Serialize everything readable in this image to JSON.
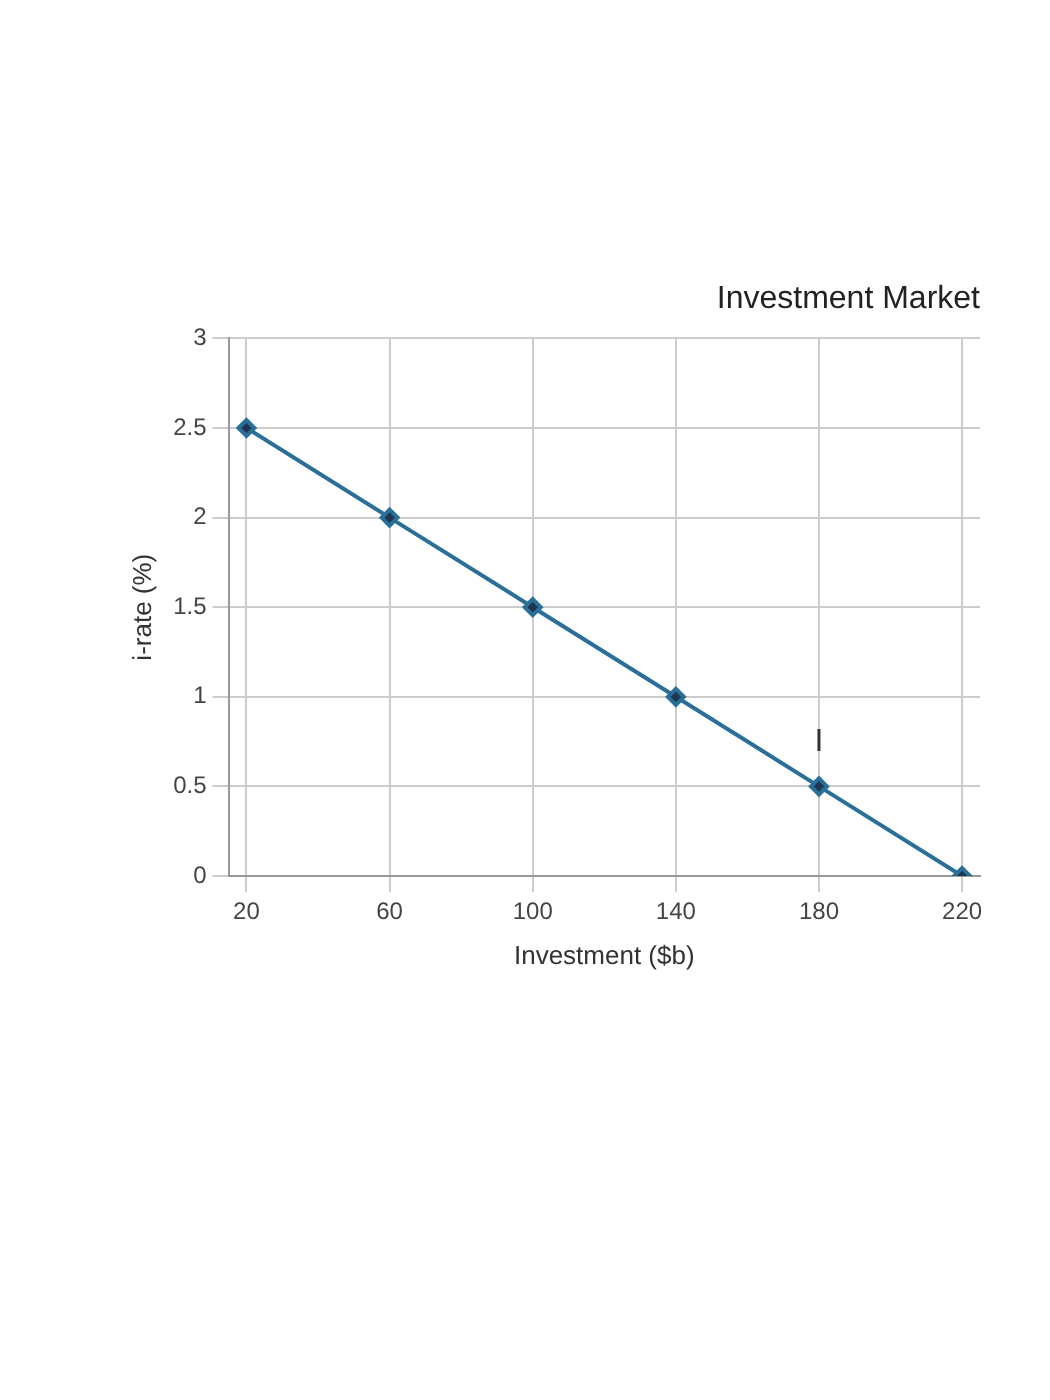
{
  "chart_data": {
    "type": "line",
    "title": "Investment Market",
    "xlabel": "Investment ($b)",
    "ylabel": "i-rate (%)",
    "x": [
      20,
      60,
      100,
      140,
      180,
      220
    ],
    "series": [
      {
        "name": "I",
        "color": "#2a6f97",
        "values": [
          2.5,
          2,
          1.5,
          1,
          0.5,
          0
        ]
      }
    ],
    "xlim": [
      15,
      225
    ],
    "xticks": [
      20,
      60,
      100,
      140,
      180,
      220
    ],
    "ylim": [
      0,
      3
    ],
    "yticks": [
      0,
      0.5,
      1,
      1.5,
      2,
      2.5,
      3
    ],
    "grid": true,
    "legend": false,
    "marker": "diamond",
    "line_style": "solid"
  }
}
